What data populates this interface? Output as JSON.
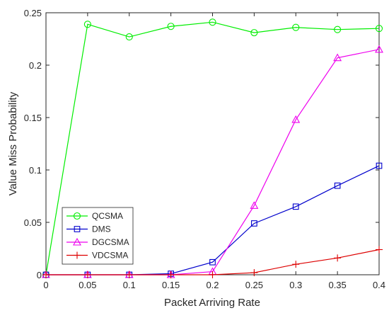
{
  "chart_data": {
    "type": "line",
    "title": "",
    "xlabel": "Packet Arriving Rate",
    "ylabel": "Value Miss Probability",
    "xlim": [
      0,
      0.4
    ],
    "ylim": [
      0,
      0.25
    ],
    "x_ticks": [
      "0",
      "0.05",
      "0.1",
      "0.15",
      "0.2",
      "0.25",
      "0.3",
      "0.35",
      "0.4"
    ],
    "y_ticks": [
      "0",
      "0.05",
      "0.1",
      "0.15",
      "0.2",
      "0.25"
    ],
    "grid": false,
    "legend_position": "bottom-left",
    "x": [
      0,
      0.05,
      0.1,
      0.15,
      0.2,
      0.25,
      0.3,
      0.35,
      0.4
    ],
    "series": [
      {
        "name": "QCSMA",
        "color": "#00ee00",
        "marker": "circle",
        "values": [
          0,
          0.239,
          0.227,
          0.237,
          0.241,
          0.231,
          0.236,
          0.234,
          0.235
        ]
      },
      {
        "name": "DMS",
        "color": "#0000cc",
        "marker": "square",
        "values": [
          0,
          0,
          0,
          0.001,
          0.012,
          0.049,
          0.065,
          0.085,
          0.104
        ]
      },
      {
        "name": "DGCSMA",
        "color": "#ee00ee",
        "marker": "triangle",
        "values": [
          0,
          0,
          0,
          0,
          0.003,
          0.066,
          0.148,
          0.207,
          0.215
        ]
      },
      {
        "name": "VDCSMA",
        "color": "#dd0000",
        "marker": "plus",
        "values": [
          0,
          0,
          0,
          0,
          0,
          0.002,
          0.01,
          0.016,
          0.024
        ]
      }
    ]
  }
}
